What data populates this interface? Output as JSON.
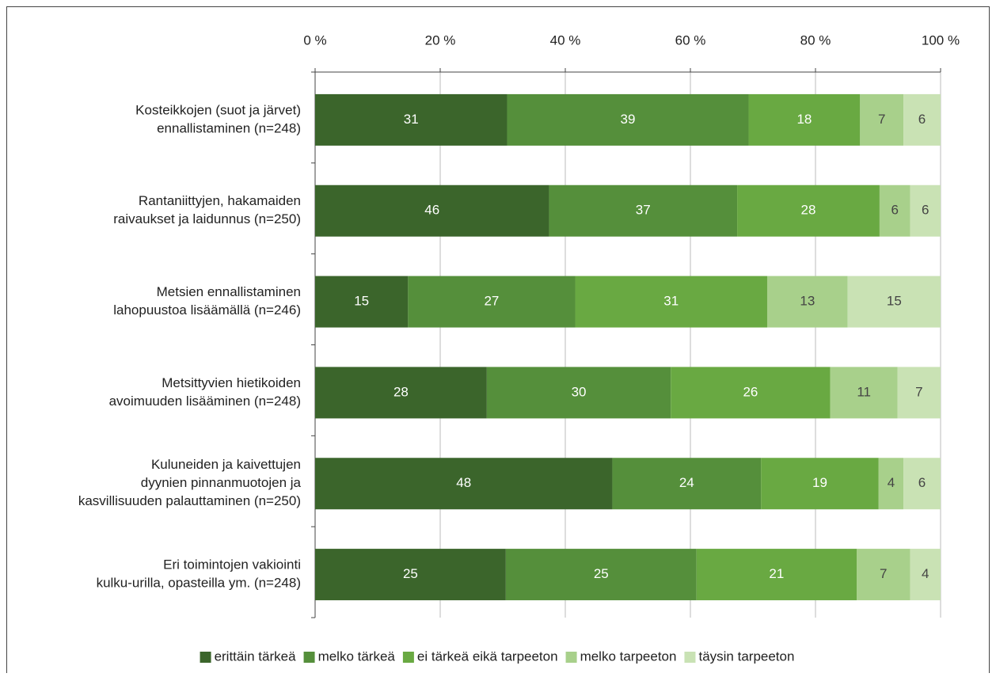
{
  "chart_data": {
    "type": "bar",
    "orientation": "horizontal",
    "stacking": "percent",
    "categories": [
      [
        "Kosteikkojen (suot ja järvet)",
        "ennallistaminen (n=248)"
      ],
      [
        "Rantaniittyjen, hakamaiden",
        "raivaukset ja laidunnus (n=250)"
      ],
      [
        "Metsien ennallistaminen",
        "lahopuustoa lisäämällä (n=246)"
      ],
      [
        "Metsittyvien hietikoiden",
        "avoimuuden lisääminen (n=248)"
      ],
      [
        "Kuluneiden ja kaivettujen",
        "dyynien pinnanmuotojen ja",
        "kasvillisuuden palauttaminen (n=250)"
      ],
      [
        "Eri toimintojen vakiointi",
        "kulku-urilla, opasteilla ym. (n=248)"
      ]
    ],
    "series": [
      {
        "name": "erittäin tärkeä",
        "color": "#3b652b",
        "values": [
          31,
          46,
          15,
          28,
          48,
          25
        ]
      },
      {
        "name": "melko tärkeä",
        "color": "#558f3b",
        "values": [
          39,
          37,
          27,
          30,
          24,
          25
        ]
      },
      {
        "name": "ei tärkeä eikä tarpeeton",
        "color": "#69a942",
        "values": [
          18,
          28,
          31,
          26,
          19,
          21
        ]
      },
      {
        "name": "melko tarpeeton",
        "color": "#a8d08b",
        "values": [
          7,
          6,
          13,
          11,
          4,
          7
        ]
      },
      {
        "name": "täysin tarpeeton",
        "color": "#c9e2b4",
        "values": [
          6,
          6,
          15,
          7,
          6,
          4
        ]
      }
    ],
    "xlim": [
      0,
      100
    ],
    "xticks": [
      {
        "value": 0,
        "label": "0 %"
      },
      {
        "value": 20,
        "label": "20 %"
      },
      {
        "value": 40,
        "label": "40 %"
      },
      {
        "value": 60,
        "label": "60 %"
      },
      {
        "value": 80,
        "label": "80 %"
      },
      {
        "value": 100,
        "label": "100 %"
      }
    ],
    "grid": true,
    "legend": "bottom"
  }
}
